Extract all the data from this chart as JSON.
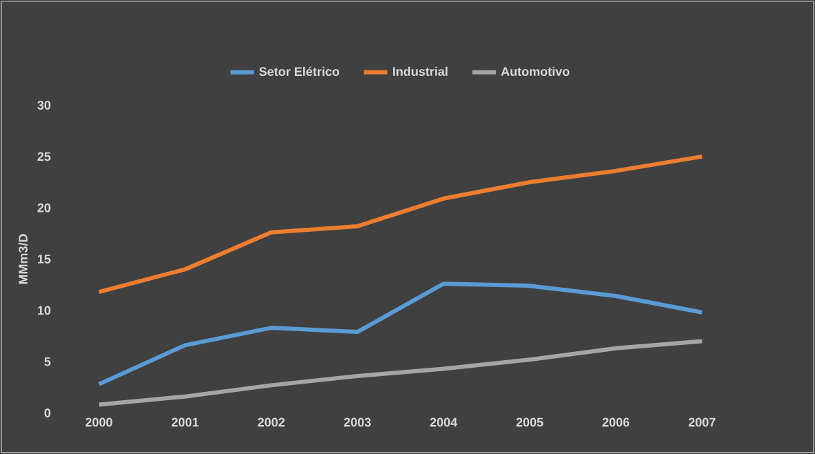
{
  "chart_data": {
    "type": "line",
    "ylabel": "MMm3/D",
    "categories": [
      "2000",
      "2001",
      "2002",
      "2003",
      "2004",
      "2005",
      "2006",
      "2007"
    ],
    "series": [
      {
        "name": "Setor Elétrico",
        "color": "#5b9bd5",
        "values": [
          2.8,
          6.6,
          8.3,
          7.9,
          12.6,
          12.4,
          11.4,
          9.8
        ]
      },
      {
        "name": "Industrial",
        "color": "#ed7d31",
        "values": [
          11.8,
          14.0,
          17.6,
          18.2,
          20.9,
          22.5,
          23.6,
          25.0
        ]
      },
      {
        "name": "Automotivo",
        "color": "#a5a5a5",
        "values": [
          0.8,
          1.6,
          2.7,
          3.6,
          4.3,
          5.2,
          6.3,
          7.0
        ]
      }
    ],
    "ylim": [
      0,
      30
    ],
    "yticks": [
      0,
      5,
      10,
      15,
      20,
      25,
      30
    ],
    "legend": "top",
    "grid": false,
    "marker": "none",
    "line_style": "solid"
  }
}
